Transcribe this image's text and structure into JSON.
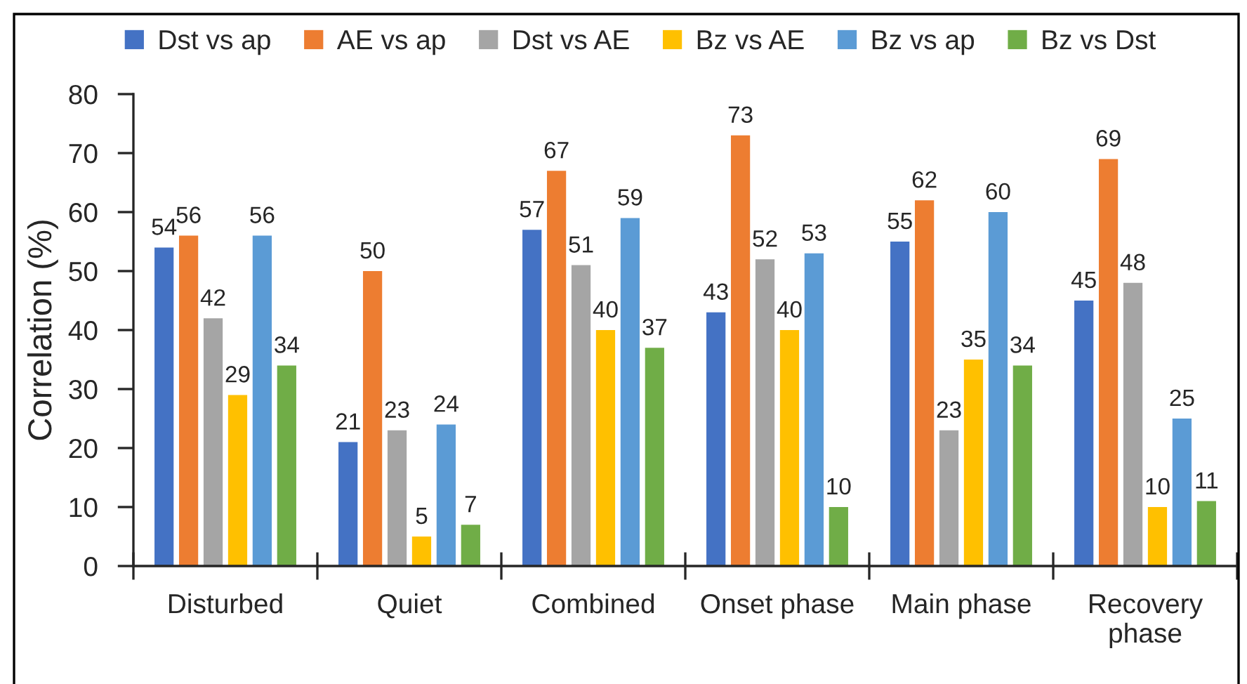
{
  "chart_data": {
    "type": "bar",
    "ylabel": "Correlation (%)",
    "categories": [
      "Disturbed",
      "Quiet",
      "Combined",
      "Onset phase",
      "Main phase",
      "Recovery phase"
    ],
    "series": [
      {
        "name": "Dst vs ap",
        "color": "#4472c4",
        "values": [
          54,
          21,
          57,
          43,
          55,
          45
        ]
      },
      {
        "name": "AE vs ap",
        "color": "#ed7d31",
        "values": [
          56,
          50,
          67,
          73,
          62,
          69
        ]
      },
      {
        "name": "Dst vs AE",
        "color": "#a5a5a5",
        "values": [
          42,
          23,
          51,
          52,
          23,
          48
        ]
      },
      {
        "name": "Bz vs AE",
        "color": "#ffc000",
        "values": [
          29,
          5,
          40,
          40,
          35,
          10
        ]
      },
      {
        "name": "Bz vs ap",
        "color": "#5b9bd5",
        "values": [
          56,
          24,
          59,
          53,
          60,
          25
        ]
      },
      {
        "name": "Bz vs Dst",
        "color": "#70ad47",
        "values": [
          34,
          7,
          37,
          10,
          34,
          11
        ]
      }
    ],
    "ylim": [
      0,
      80
    ],
    "yticks": [
      0,
      10,
      20,
      30,
      40,
      50,
      60,
      70,
      80
    ],
    "data_labels": true,
    "legend": "top"
  }
}
